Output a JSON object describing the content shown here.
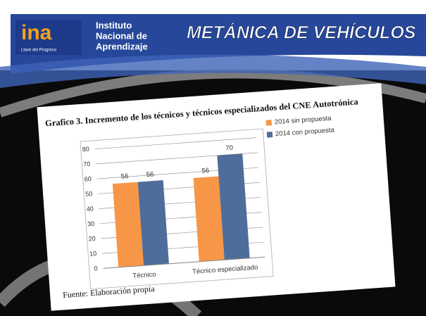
{
  "header": {
    "logo": "ina",
    "tagline": "Llave del Progreso",
    "institute": [
      "Instituto",
      "Nacional de",
      "Aprendizaje"
    ],
    "title": "METÁNICA DE VEHÍCULOS"
  },
  "chart_data": {
    "type": "bar",
    "title": "Grafico 3. Incremento de los técnicos y técnicos especializados del CNE Autotrónica",
    "note": "Fuente: Elaboración propia",
    "categories": [
      "Técnico",
      "Técnico especializado"
    ],
    "series": [
      {
        "name": "2014 sin propuesta",
        "color": "#f79646",
        "values": [
          56,
          56
        ]
      },
      {
        "name": "2014 con propuesta",
        "color": "#4f6d9a",
        "values": [
          56,
          70
        ]
      }
    ],
    "ylim": [
      0,
      80
    ],
    "yticks": [
      0,
      10,
      20,
      30,
      40,
      50,
      60,
      70,
      80
    ],
    "grid": true,
    "legend": "right"
  }
}
